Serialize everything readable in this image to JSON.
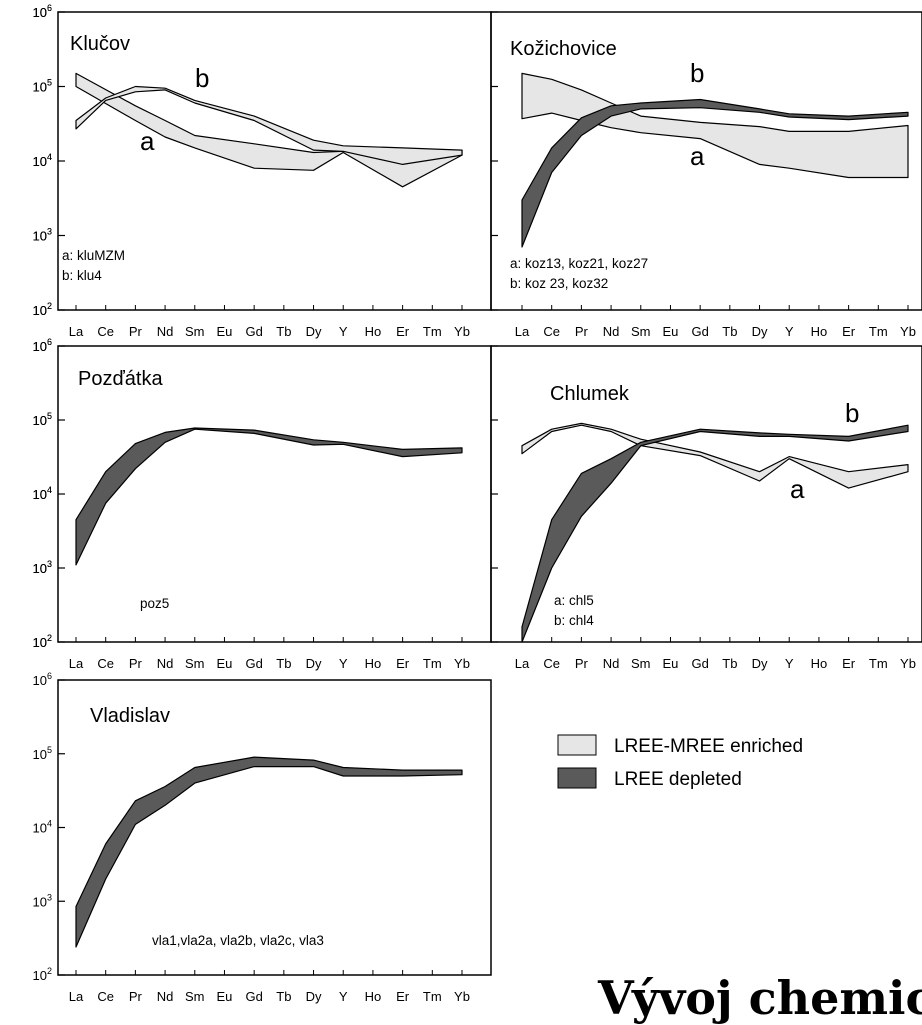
{
  "footer_text": "Vývoj chemick",
  "colors": {
    "enriched": "#e6e6e6",
    "depleted": "#5a5a5a",
    "stroke": "#000000"
  },
  "legend": {
    "placement": "right-middle",
    "items": [
      {
        "label": "LREE-MREE enriched",
        "kind": "enriched"
      },
      {
        "label": "LREE depleted",
        "kind": "depleted"
      }
    ]
  },
  "chart_data": [
    {
      "type": "area",
      "scale": "log",
      "title": "Klučov",
      "categories": [
        "La",
        "Ce",
        "Pr",
        "Nd",
        "Sm",
        "Eu",
        "Gd",
        "Tb",
        "Dy",
        "Y",
        "Ho",
        "Er",
        "Tm",
        "Yb"
      ],
      "yticks": [
        "10^2",
        "10^3",
        "10^4",
        "10^5",
        "10^6"
      ],
      "ylim": [
        100,
        1000000
      ],
      "notes": [
        "a: kluMZM",
        "b: klu4"
      ],
      "series": [
        {
          "name": "a",
          "kind": "enriched",
          "upper": [
            150000,
            null,
            55000,
            35000,
            22000,
            null,
            17000,
            null,
            13000,
            13500,
            null,
            11000,
            null,
            14000
          ],
          "lower": [
            100000,
            null,
            35000,
            21000,
            15000,
            null,
            8000,
            null,
            7500,
            13000,
            null,
            4500,
            null,
            12000
          ]
        },
        {
          "name": "b",
          "kind": "enriched",
          "upper": [
            35000,
            70000,
            100000,
            95000,
            65000,
            null,
            40000,
            null,
            19000,
            16000,
            null,
            15000,
            null,
            14000
          ],
          "lower": [
            27000,
            65000,
            85000,
            90000,
            60000,
            null,
            35000,
            null,
            14000,
            13500,
            null,
            9000,
            null,
            12000
          ]
        }
      ]
    },
    {
      "type": "area",
      "scale": "log",
      "title": "Kožichovice",
      "categories": [
        "La",
        "Ce",
        "Pr",
        "Nd",
        "Sm",
        "Eu",
        "Gd",
        "Tb",
        "Dy",
        "Y",
        "Ho",
        "Er",
        "Tm",
        "Yb"
      ],
      "yticks": [
        "10^2",
        "10^3",
        "10^4",
        "10^5",
        "10^6"
      ],
      "ylim": [
        100,
        1000000
      ],
      "notes": [
        "a: koz13, koz21, koz27",
        "b: koz 23, koz32"
      ],
      "series": [
        {
          "name": "a",
          "kind": "enriched",
          "upper": [
            150000,
            125000,
            90000,
            60000,
            40000,
            null,
            33000,
            null,
            29000,
            25000,
            null,
            25000,
            null,
            30000
          ],
          "lower": [
            37000,
            44000,
            35000,
            28000,
            24000,
            null,
            20000,
            null,
            9000,
            8000,
            null,
            6000,
            null,
            6000
          ]
        },
        {
          "name": "b",
          "kind": "depleted",
          "upper": [
            3000,
            15000,
            38000,
            55000,
            60000,
            null,
            67000,
            null,
            50000,
            43000,
            null,
            40000,
            null,
            45000
          ],
          "lower": [
            700,
            7000,
            22000,
            40000,
            50000,
            null,
            52000,
            null,
            45000,
            39000,
            null,
            36000,
            null,
            40000
          ]
        }
      ]
    },
    {
      "type": "area",
      "scale": "log",
      "title": "Pozďátka",
      "categories": [
        "La",
        "Ce",
        "Pr",
        "Nd",
        "Sm",
        "Eu",
        "Gd",
        "Tb",
        "Dy",
        "Y",
        "Ho",
        "Er",
        "Tm",
        "Yb"
      ],
      "yticks": [
        "10^2",
        "10^3",
        "10^4",
        "10^5",
        "10^6"
      ],
      "ylim": [
        100,
        1000000
      ],
      "notes": [
        "poz5"
      ],
      "series": [
        {
          "name": "",
          "kind": "depleted",
          "upper": [
            4500,
            20000,
            48000,
            68000,
            78000,
            null,
            73000,
            null,
            54000,
            50000,
            null,
            40000,
            null,
            42000
          ],
          "lower": [
            1100,
            7500,
            22000,
            50000,
            75000,
            null,
            66000,
            null,
            46000,
            47000,
            null,
            32000,
            null,
            36000
          ]
        }
      ]
    },
    {
      "type": "area",
      "scale": "log",
      "title": "Chlumek",
      "categories": [
        "La",
        "Ce",
        "Pr",
        "Nd",
        "Sm",
        "Eu",
        "Gd",
        "Tb",
        "Dy",
        "Y",
        "Ho",
        "Er",
        "Tm",
        "Yb"
      ],
      "yticks": [
        "10^2",
        "10^3",
        "10^4",
        "10^5",
        "10^6"
      ],
      "ylim": [
        100,
        1000000
      ],
      "notes": [
        "a: chl5",
        "b: chl4"
      ],
      "series": [
        {
          "name": "a",
          "kind": "enriched",
          "upper": [
            45000,
            75000,
            90000,
            75000,
            55000,
            null,
            37000,
            null,
            20000,
            32000,
            null,
            20000,
            null,
            25000
          ],
          "lower": [
            35000,
            70000,
            85000,
            70000,
            45000,
            null,
            33000,
            null,
            15000,
            30000,
            null,
            12000,
            null,
            20000
          ]
        },
        {
          "name": "b",
          "kind": "depleted",
          "upper": [
            160,
            4500,
            19000,
            30000,
            50000,
            null,
            75000,
            null,
            67000,
            64000,
            null,
            60000,
            null,
            85000
          ],
          "lower": [
            100,
            1000,
            5000,
            14000,
            45000,
            null,
            70000,
            null,
            60000,
            60000,
            null,
            52000,
            null,
            70000
          ]
        }
      ]
    },
    {
      "type": "area",
      "scale": "log",
      "title": "Vladislav",
      "categories": [
        "La",
        "Ce",
        "Pr",
        "Nd",
        "Sm",
        "Eu",
        "Gd",
        "Tb",
        "Dy",
        "Y",
        "Ho",
        "Er",
        "Tm",
        "Yb"
      ],
      "yticks": [
        "10^2",
        "10^3",
        "10^4",
        "10^5",
        "10^6"
      ],
      "ylim": [
        100,
        1000000
      ],
      "notes": [
        "vla1,vla2a, vla2b, vla2c, vla3"
      ],
      "series": [
        {
          "name": "",
          "kind": "depleted",
          "upper": [
            850,
            6000,
            23000,
            36000,
            65000,
            null,
            90000,
            null,
            82000,
            65000,
            null,
            60000,
            null,
            60000
          ],
          "lower": [
            240,
            2000,
            11000,
            20000,
            40000,
            null,
            67000,
            null,
            67000,
            50000,
            null,
            50000,
            null,
            52000
          ]
        }
      ]
    }
  ]
}
